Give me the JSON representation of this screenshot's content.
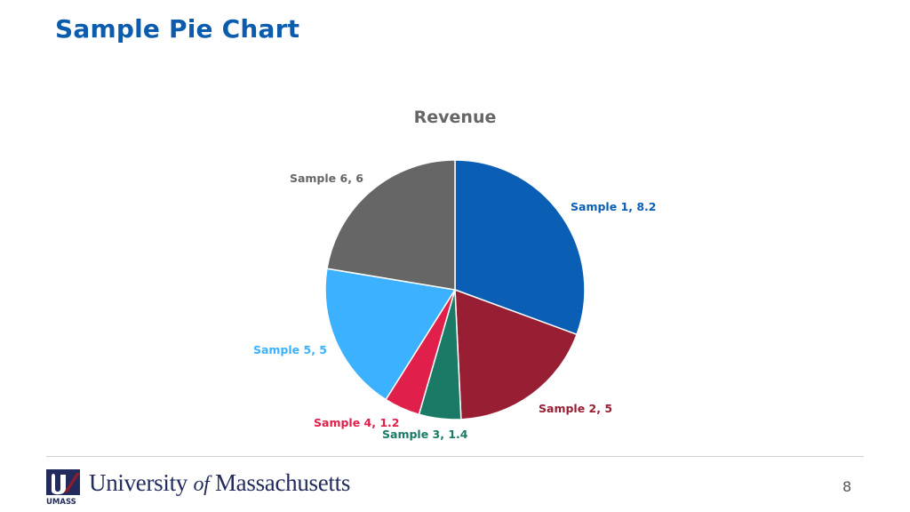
{
  "slide": {
    "title": "Sample Pie Chart",
    "page_number": "8"
  },
  "footer": {
    "logo_university": "University ",
    "logo_of": "of",
    "logo_state": " Massachusetts",
    "logo_badge": "UMASS"
  },
  "colors": {
    "title": "#0b5cad",
    "logo": "#222b5c",
    "logo_accent": "#8a1c2c"
  },
  "chart_data": {
    "type": "pie",
    "title": "Revenue",
    "categories": [
      "Sample 1",
      "Sample 2",
      "Sample 3",
      "Sample 4",
      "Sample 5",
      "Sample 6"
    ],
    "values": [
      8.2,
      5,
      1.4,
      1.2,
      5,
      6
    ],
    "labels": [
      "Sample 1, 8.2",
      "Sample 2, 5",
      "Sample 3, 1.4",
      "Sample 4, 1.2",
      "Sample 5, 5",
      "Sample 6, 6"
    ],
    "colors": [
      "#0a5fb4",
      "#981f33",
      "#1a7a66",
      "#e0204a",
      "#3cb1ff",
      "#666666"
    ],
    "start_angle": "12 o'clock",
    "direction": "clockwise",
    "legend": "none"
  }
}
